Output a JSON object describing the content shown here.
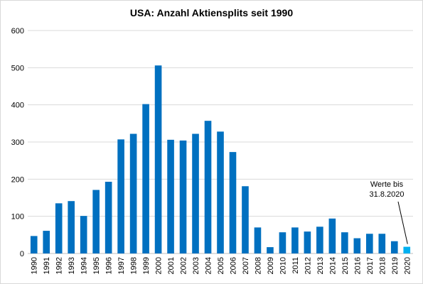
{
  "chart_data": {
    "type": "bar",
    "title": "USA: Anzahl Aktiensplits seit 1990",
    "xlabel": "",
    "ylabel": "",
    "ylim": [
      0,
      600
    ],
    "yticks": [
      0,
      100,
      200,
      300,
      400,
      500,
      600
    ],
    "grid": true,
    "legend": "none",
    "categories": [
      "1990",
      "1991",
      "1992",
      "1993",
      "1994",
      "1995",
      "1996",
      "1997",
      "1998",
      "1999",
      "2000",
      "2001",
      "2002",
      "2003",
      "2004",
      "2005",
      "2006",
      "2007",
      "2008",
      "2009",
      "2010",
      "2011",
      "2012",
      "2013",
      "2014",
      "2015",
      "2016",
      "2017",
      "2018",
      "2019",
      "2020"
    ],
    "values": [
      47,
      61,
      135,
      141,
      101,
      171,
      193,
      307,
      322,
      402,
      506,
      306,
      304,
      322,
      357,
      328,
      273,
      181,
      70,
      17,
      57,
      70,
      59,
      72,
      94,
      57,
      41,
      53,
      53,
      33,
      18
    ],
    "colors": {
      "bar": "#0070c0",
      "highlight": "#00b0f0",
      "grid": "#d9d9d9"
    },
    "highlight_index": 30,
    "annotation": {
      "lines": [
        "Werte bis",
        "31.8.2020"
      ],
      "target_index": 30
    }
  }
}
